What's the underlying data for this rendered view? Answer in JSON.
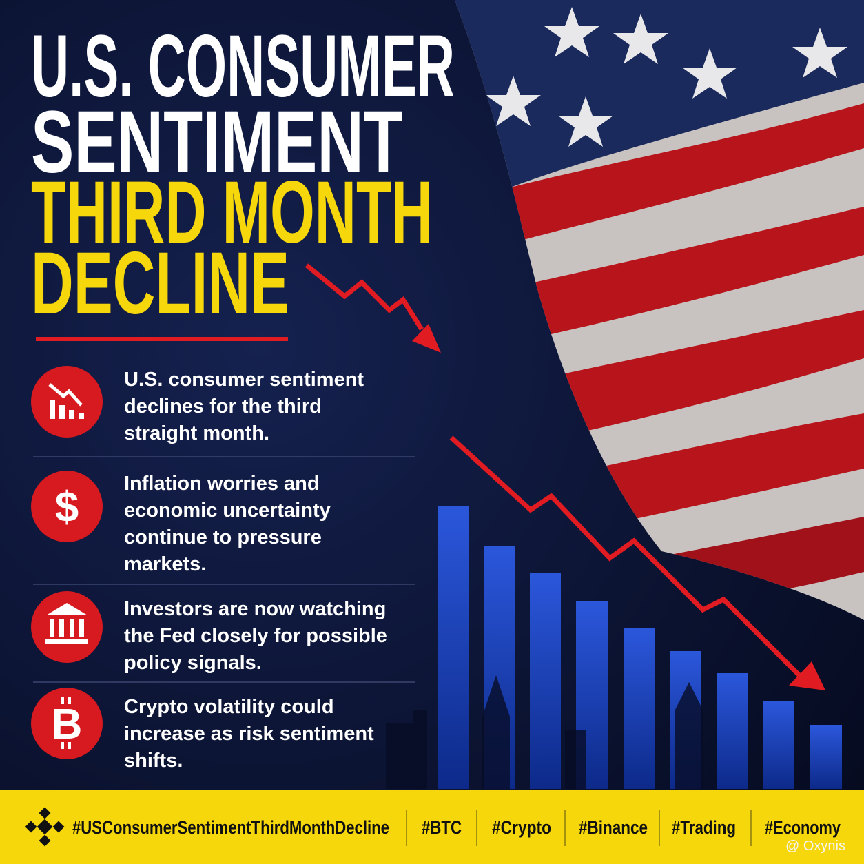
{
  "header": {
    "title_lines": [
      "U.S. CONSUMER",
      "SENTIMENT"
    ],
    "highlight_lines": [
      "THIRD MONTH",
      "DECLINE"
    ]
  },
  "points": [
    {
      "lines": [
        "U.S. consumer sentiment",
        "declines for the third",
        "straight month."
      ]
    },
    {
      "icon": "$",
      "lines": [
        "Inflation worries and",
        "economic uncertainty",
        "continue to pressure",
        "markets."
      ]
    },
    {
      "lines": [
        "Investors are now watching",
        "the Fed closely for possible",
        "policy signals."
      ]
    },
    {
      "icon": "B",
      "lines": [
        "Crypto volatility could",
        "increase as risk sentiment",
        "shifts."
      ]
    }
  ],
  "footer": {
    "hashtags": [
      "#USConsumerSentimentThirdMonthDecline",
      "#BTC",
      "#Crypto",
      "#Binance",
      "#Trading",
      "#Economy"
    ]
  },
  "watermark": "@ Oxynis"
}
